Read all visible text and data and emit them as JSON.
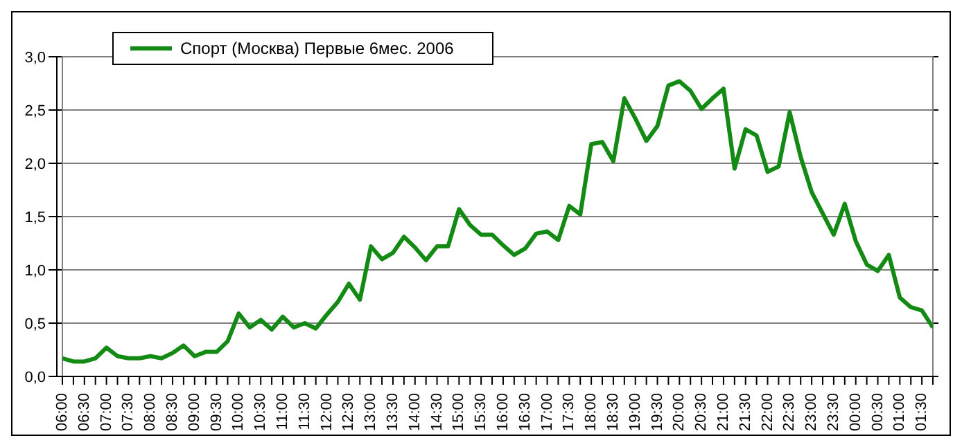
{
  "chart_data": {
    "type": "line",
    "categories": [
      "06:00",
      null,
      "06:30",
      null,
      "07:00",
      null,
      "07:30",
      null,
      "08:00",
      null,
      "08:30",
      null,
      "09:00",
      null,
      "09:30",
      null,
      "10:00",
      null,
      "10:30",
      null,
      "11:00",
      null,
      "11:30",
      null,
      "12:00",
      null,
      "12:30",
      null,
      "13:00",
      null,
      "13:30",
      null,
      "14:00",
      null,
      "14:30",
      null,
      "15:00",
      null,
      "15:30",
      null,
      "16:00",
      null,
      "16:30",
      null,
      "17:00",
      null,
      "17:30",
      null,
      "18:00",
      null,
      "18:30",
      null,
      "19:00",
      null,
      "19:30",
      null,
      "20:00",
      null,
      "20:30",
      null,
      "21:00",
      null,
      "21:30",
      null,
      "22:00",
      null,
      "22:30",
      null,
      "23:00",
      null,
      "23:30",
      null,
      "00:00",
      null,
      "00:30",
      null,
      "01:00",
      null,
      "01:30",
      null
    ],
    "series": [
      {
        "name": "Спорт (Москва) Первые 6мес. 2006",
        "color": "#138a13",
        "values": [
          0.17,
          0.14,
          0.14,
          0.17,
          0.27,
          0.19,
          0.17,
          0.17,
          0.19,
          0.17,
          0.22,
          0.29,
          0.19,
          0.23,
          0.23,
          0.33,
          0.59,
          0.46,
          0.53,
          0.44,
          0.56,
          0.46,
          0.5,
          0.45,
          0.58,
          0.7,
          0.87,
          0.72,
          1.22,
          1.1,
          1.16,
          1.31,
          1.21,
          1.09,
          1.22,
          1.22,
          1.57,
          1.42,
          1.33,
          1.33,
          1.23,
          1.14,
          1.2,
          1.34,
          1.36,
          1.28,
          1.6,
          1.52,
          2.18,
          2.2,
          2.02,
          2.61,
          2.42,
          2.21,
          2.35,
          2.73,
          2.77,
          2.68,
          2.51,
          2.61,
          2.7,
          1.95,
          2.32,
          2.26,
          1.92,
          1.97,
          2.48,
          2.06,
          1.73,
          1.53,
          1.33,
          1.62,
          1.27,
          1.05,
          0.99,
          1.14,
          0.74,
          0.65,
          0.62,
          0.46
        ]
      }
    ],
    "ylim": [
      0,
      3
    ],
    "yticks": [
      {
        "value": 0,
        "label": "0,0"
      },
      {
        "value": 0.5,
        "label": "0,5"
      },
      {
        "value": 1,
        "label": "1,0"
      },
      {
        "value": 1.5,
        "label": "1,5"
      },
      {
        "value": 2,
        "label": "2,0"
      },
      {
        "value": 2.5,
        "label": "2,5"
      },
      {
        "value": 3,
        "label": "3,0"
      }
    ],
    "grid": "y",
    "legend": "top left",
    "marker": "none",
    "line_style": "solid"
  }
}
